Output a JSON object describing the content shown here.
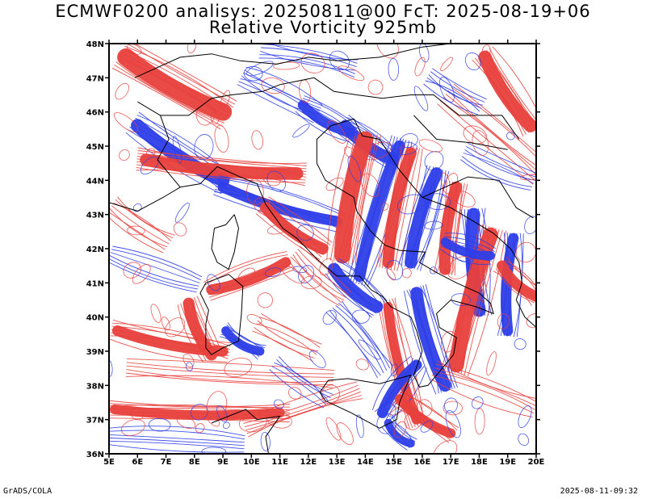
{
  "title_line1": "ECMWF0200 analisys: 20250811@00 FcT: 2025-08-19+06",
  "title_line2": "Relative Vorticity 925mb",
  "lat_labels": [
    "36N",
    "37N",
    "38N",
    "39N",
    "40N",
    "41N",
    "42N",
    "43N",
    "44N",
    "45N",
    "46N",
    "47N",
    "48N"
  ],
  "lon_labels": [
    "5E",
    "6E",
    "7E",
    "8E",
    "9E",
    "10E",
    "11E",
    "12E",
    "13E",
    "14E",
    "15E",
    "16E",
    "17E",
    "18E",
    "19E",
    "20E"
  ],
  "lat_range": [
    36,
    48
  ],
  "lon_range": [
    5,
    20
  ],
  "colors": {
    "positive": "#e8403c",
    "negative": "#2e3ee8",
    "frame": "#000000",
    "coast": "#000000"
  },
  "footer_left": "GrADS/COLA",
  "footer_right": "2025-08-11-09:32"
}
